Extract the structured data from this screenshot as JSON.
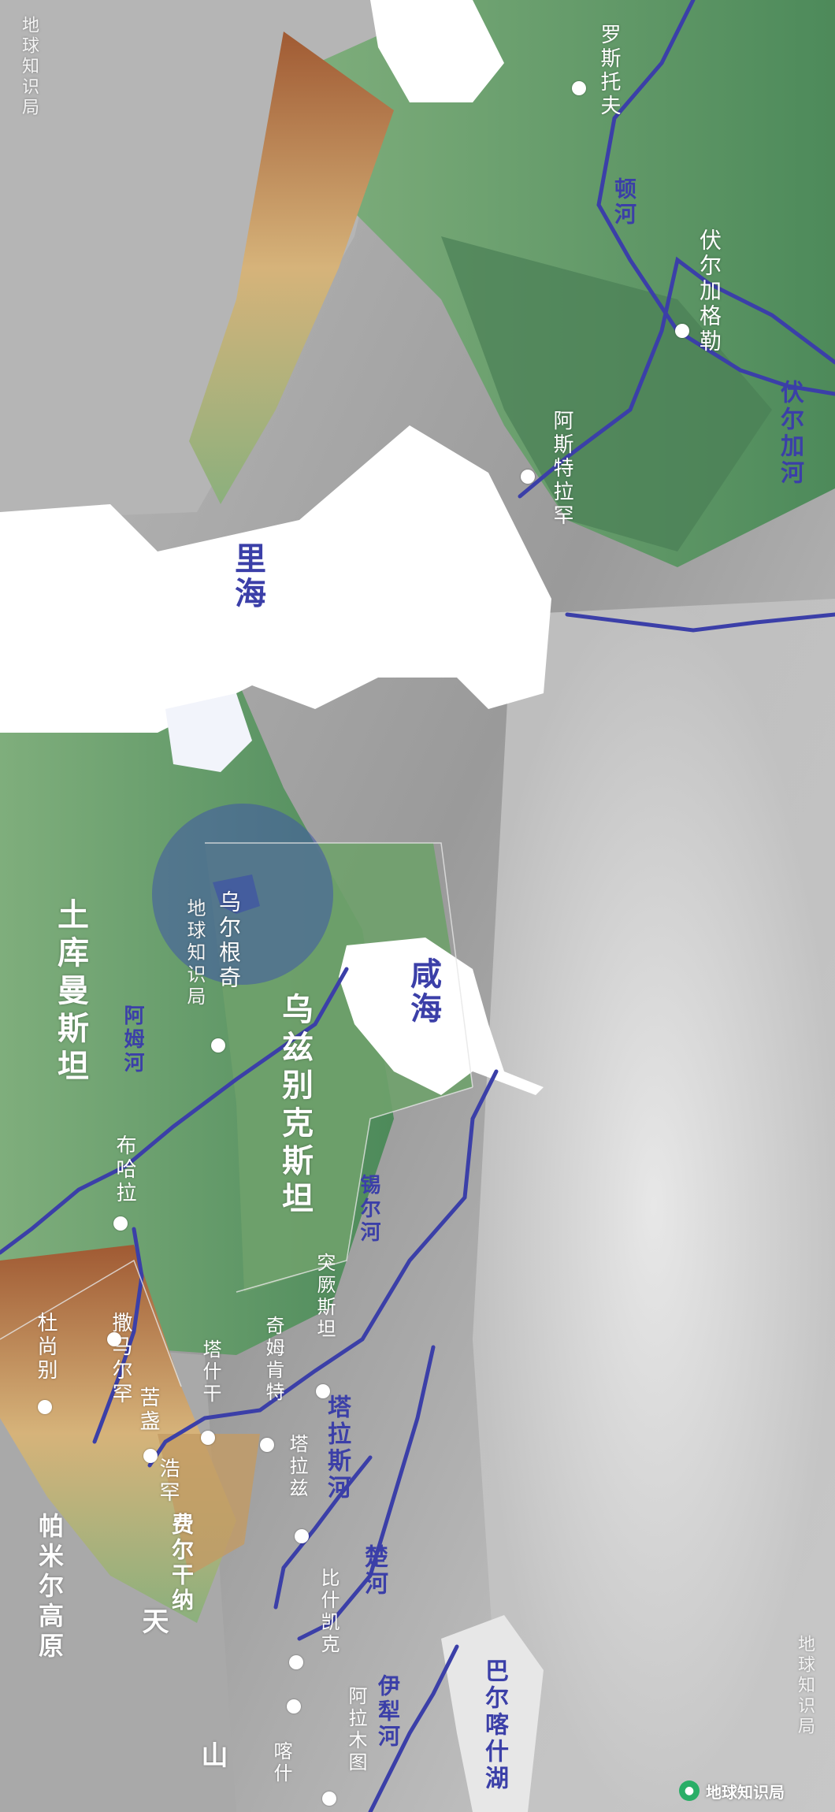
{
  "map": {
    "seas": [
      {
        "id": "caspian",
        "label": "里海"
      },
      {
        "id": "aral",
        "label": "咸海"
      }
    ],
    "rivers": [
      {
        "id": "don",
        "label": "顿河"
      },
      {
        "id": "volga",
        "label": "伏尔加河"
      },
      {
        "id": "amu",
        "label": "阿姆河"
      },
      {
        "id": "syr",
        "label": "锡尔河"
      },
      {
        "id": "talas",
        "label": "塔拉斯河"
      },
      {
        "id": "chu",
        "label": "楚河"
      },
      {
        "id": "ili",
        "label": "伊犁河"
      }
    ],
    "cities": [
      {
        "id": "rostov",
        "label": "罗斯托夫"
      },
      {
        "id": "volgograd",
        "label": "伏尔加格勒"
      },
      {
        "id": "astrakhan",
        "label": "阿斯特拉罕"
      },
      {
        "id": "urgench",
        "label": "乌尔根奇"
      },
      {
        "id": "bukhara",
        "label": "布哈拉"
      },
      {
        "id": "samarkand",
        "label": "撒马尔罕"
      },
      {
        "id": "dushanbe",
        "label": "杜尚别"
      },
      {
        "id": "khujand",
        "label": "苦盏"
      },
      {
        "id": "kokand",
        "label": "浩罕"
      },
      {
        "id": "tashkent",
        "label": "塔什干"
      },
      {
        "id": "turkestan",
        "label": "突厥斯坦"
      },
      {
        "id": "shymkent",
        "label": "奇姆肯特"
      },
      {
        "id": "taraz",
        "label": "塔拉兹"
      },
      {
        "id": "bishkek",
        "label": "比什凯克"
      },
      {
        "id": "almaty",
        "label": "阿拉木图"
      },
      {
        "id": "kashgar",
        "label": "喀什"
      }
    ],
    "regions": [
      {
        "id": "turkmenistan",
        "label": "土库曼斯坦"
      },
      {
        "id": "uzbekistan",
        "label": "乌兹别克斯坦"
      },
      {
        "id": "pamir",
        "label": "帕米尔高原"
      },
      {
        "id": "balkhash",
        "label": "巴尔喀什湖"
      },
      {
        "id": "tianshan1",
        "label": "天"
      },
      {
        "id": "tianshan2",
        "label": "山"
      },
      {
        "id": "ferghana",
        "label": "费尔干纳"
      }
    ],
    "watermarks": [
      {
        "id": "wm1",
        "label": "地球知识局"
      },
      {
        "id": "wm2",
        "label": "地球知识局"
      },
      {
        "id": "wm3",
        "label": "地球知识局"
      }
    ],
    "credit": {
      "label": "地球知识局"
    },
    "colors": {
      "water": "#ffffff",
      "river": "#3b3fa8",
      "lowland": "#5f9968",
      "highland": "#b9733f",
      "terrain": "#c9c9c9",
      "highlight": "#3f56a8"
    }
  }
}
